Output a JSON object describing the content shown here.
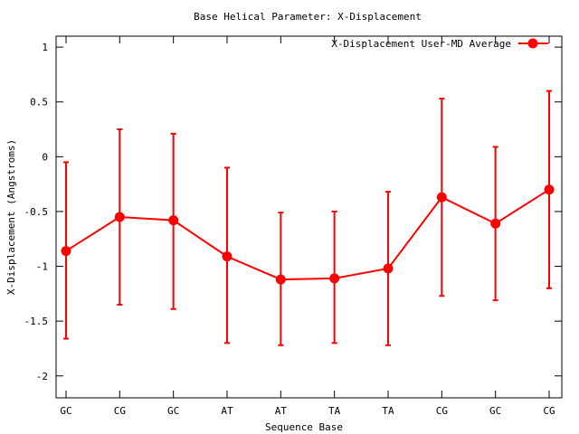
{
  "chart_data": {
    "type": "line",
    "title": "Base  Helical Parameter: X-Displacement",
    "xlabel": "Sequence Base",
    "ylabel": "X-Displacement (Angstroms)",
    "categories": [
      "GC",
      "CG",
      "GC",
      "AT",
      "AT",
      "TA",
      "TA",
      "CG",
      "GC",
      "CG"
    ],
    "ylim": [
      -2.2,
      1.1
    ],
    "yticks": [
      1,
      0.5,
      0,
      -0.5,
      -1,
      -1.5,
      -2
    ],
    "ytick_labels": [
      "1",
      "0.5",
      "0",
      "-0.5",
      "-1",
      "-1.5",
      "-2"
    ],
    "grid": false,
    "legend_position": "top-right",
    "series": [
      {
        "name": "X-Displacement User-MD Average",
        "color": "#ff0000",
        "values": [
          -0.86,
          -0.55,
          -0.58,
          -0.91,
          -1.12,
          -1.11,
          -1.02,
          -0.37,
          -0.61,
          -0.3
        ],
        "error_low": [
          -1.66,
          -1.35,
          -1.39,
          -1.7,
          -1.72,
          -1.7,
          -1.72,
          -1.27,
          -1.31,
          -1.2
        ],
        "error_high": [
          -0.05,
          0.25,
          0.21,
          -0.1,
          -0.51,
          -0.5,
          -0.32,
          0.53,
          0.09,
          0.6
        ]
      }
    ]
  }
}
